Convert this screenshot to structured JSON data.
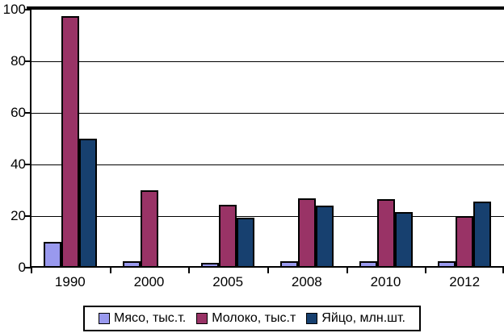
{
  "chart_data": {
    "type": "bar",
    "title": "",
    "xlabel": "",
    "ylabel": "",
    "categories": [
      "1990",
      "2000",
      "2005",
      "2008",
      "2010",
      "2012"
    ],
    "series": [
      {
        "name": "Мясо, тыс.т.",
        "color": "#9999EE",
        "values": [
          10,
          2.5,
          2,
          2.5,
          2.5,
          2.5
        ]
      },
      {
        "name": "Молоко, тыс.т",
        "color": "#993366",
        "values": [
          97.5,
          30,
          24.5,
          27,
          26.5,
          20
        ]
      },
      {
        "name": "Яйцо, млн.шт.",
        "color": "#17406F",
        "values": [
          50,
          0,
          19.5,
          24,
          21.5,
          25.5
        ]
      }
    ],
    "ylim": [
      0,
      100
    ],
    "yticks": [
      0,
      20,
      40,
      60,
      80,
      100
    ],
    "grid": true,
    "legend_position": "bottom",
    "axis_color": "#000000",
    "background_color": "#FFFFFF"
  }
}
